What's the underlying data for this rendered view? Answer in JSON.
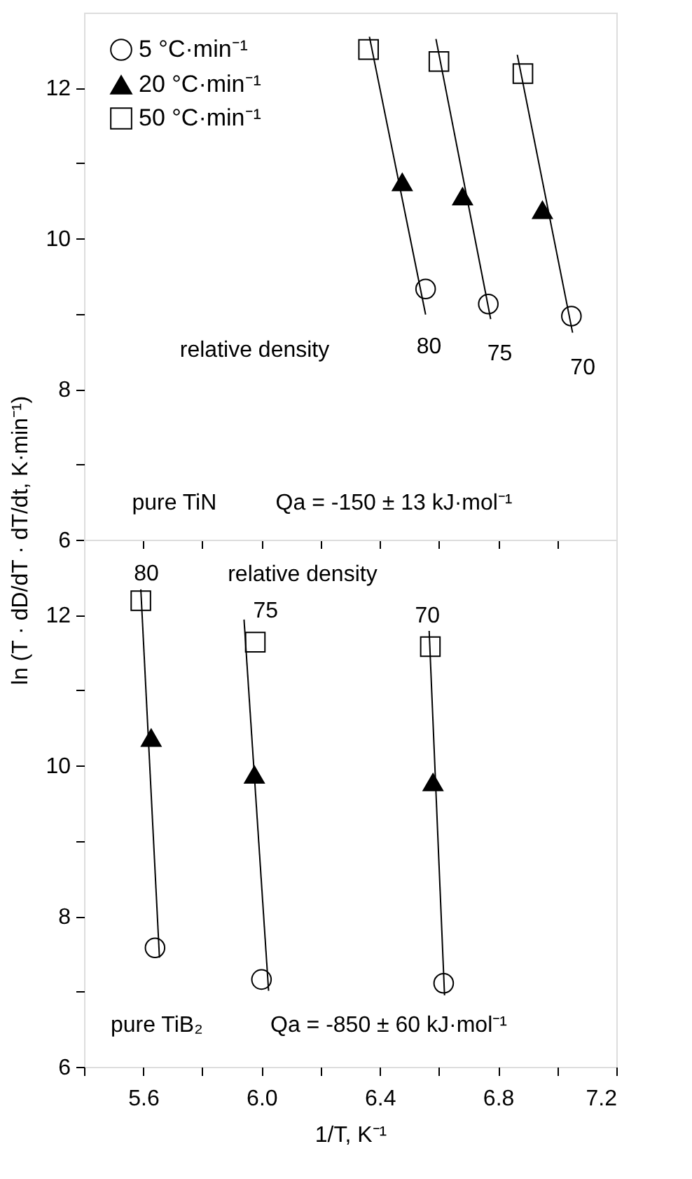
{
  "chart_data": [
    {
      "type": "scatter",
      "ylabel": "ln (T · dD/dT · dT/dt, K·min⁻¹)",
      "xlim": [
        5.4,
        7.2
      ],
      "ylim": [
        6,
        13
      ],
      "xticks": [
        {
          "value": 5.4,
          "label": null
        },
        {
          "value": 5.6,
          "label": null
        },
        {
          "value": 5.8,
          "label": null
        },
        {
          "value": 6.0,
          "label": null
        },
        {
          "value": 6.2,
          "label": null
        },
        {
          "value": 6.4,
          "label": null
        },
        {
          "value": 6.6,
          "label": null
        },
        {
          "value": 6.8,
          "label": null
        },
        {
          "value": 7.0,
          "label": null
        },
        {
          "value": 7.2,
          "label": null
        }
      ],
      "yticks": [
        6,
        {
          "value": 7,
          "label": null
        },
        8,
        {
          "value": 9,
          "label": null
        },
        10,
        {
          "value": 11,
          "label": null
        },
        12
      ],
      "tick_labels": "y",
      "grid": false,
      "legend": "top left",
      "series": [
        {
          "name": "5 °C·min⁻¹",
          "marker": "circle",
          "color": "#000000",
          "x": [
            6.555,
            6.767,
            7.048
          ],
          "values": [
            9.33,
            9.13,
            8.97
          ]
        },
        {
          "name": "20 °C·min⁻¹",
          "marker": "triangle",
          "color": "#000000",
          "x": [
            6.476,
            6.68,
            6.95
          ],
          "values": [
            10.75,
            10.56,
            10.38
          ]
        },
        {
          "name": "50 °C·min⁻¹",
          "marker": "square",
          "color": "#000000",
          "x": [
            6.362,
            6.6,
            6.884
          ],
          "values": [
            12.51,
            12.35,
            12.19
          ]
        },
        {
          "type": "line",
          "color": "#000000",
          "x": [
            6.365,
            6.555
          ],
          "values": [
            12.68,
            8.99
          ]
        },
        {
          "type": "line",
          "color": "#000000",
          "x": [
            6.59,
            6.775
          ],
          "values": [
            12.65,
            8.93
          ]
        },
        {
          "type": "line",
          "color": "#000000",
          "x": [
            6.865,
            7.052
          ],
          "values": [
            12.44,
            8.75
          ]
        }
      ],
      "annotations": [
        "80",
        "75",
        "70",
        "relative density",
        "pure TiN",
        "Qa = -150 ± 13 kJ·mol⁻¹"
      ]
    },
    {
      "type": "scatter",
      "xlabel": "1/T, K⁻¹",
      "xlim": [
        5.4,
        7.2
      ],
      "ylim": [
        6,
        13
      ],
      "xticks": [
        {
          "value": 5.4,
          "label": null
        },
        5.6,
        {
          "value": 5.8,
          "label": null
        },
        {
          "value": 6.0,
          "label": "6.0"
        },
        {
          "value": 6.2,
          "label": null
        },
        6.4,
        {
          "value": 6.6,
          "label": null
        },
        6.8,
        {
          "value": 7.0,
          "label": null
        },
        7.2
      ],
      "yticks": [
        6,
        {
          "value": 7,
          "label": null
        },
        8,
        {
          "value": 9,
          "label": null
        },
        10,
        {
          "value": 11,
          "label": null
        },
        12
      ],
      "grid": false,
      "series": [
        {
          "marker": "circle",
          "color": "#000000",
          "x": [
            5.64,
            6.0,
            6.616
          ],
          "values": [
            7.58,
            7.16,
            7.11
          ]
        },
        {
          "marker": "triangle",
          "color": "#000000",
          "x": [
            5.627,
            5.976,
            6.58
          ],
          "values": [
            10.37,
            9.88,
            9.78
          ]
        },
        {
          "marker": "square",
          "color": "#000000",
          "x": [
            5.592,
            5.979,
            6.571
          ],
          "values": [
            12.19,
            11.64,
            11.58
          ]
        },
        {
          "type": "line",
          "color": "#000000",
          "x": [
            5.592,
            5.655
          ],
          "values": [
            12.34,
            7.45
          ]
        },
        {
          "type": "line",
          "color": "#000000",
          "x": [
            5.941,
            6.024
          ],
          "values": [
            11.94,
            7.01
          ]
        },
        {
          "type": "line",
          "color": "#000000",
          "x": [
            6.567,
            6.619
          ],
          "values": [
            11.79,
            6.95
          ]
        }
      ],
      "annotations": [
        "80",
        "75",
        "70",
        "relative density",
        "pure TiB₂",
        "Qa = -850 ± 60 kJ·mol⁻¹"
      ]
    }
  ]
}
